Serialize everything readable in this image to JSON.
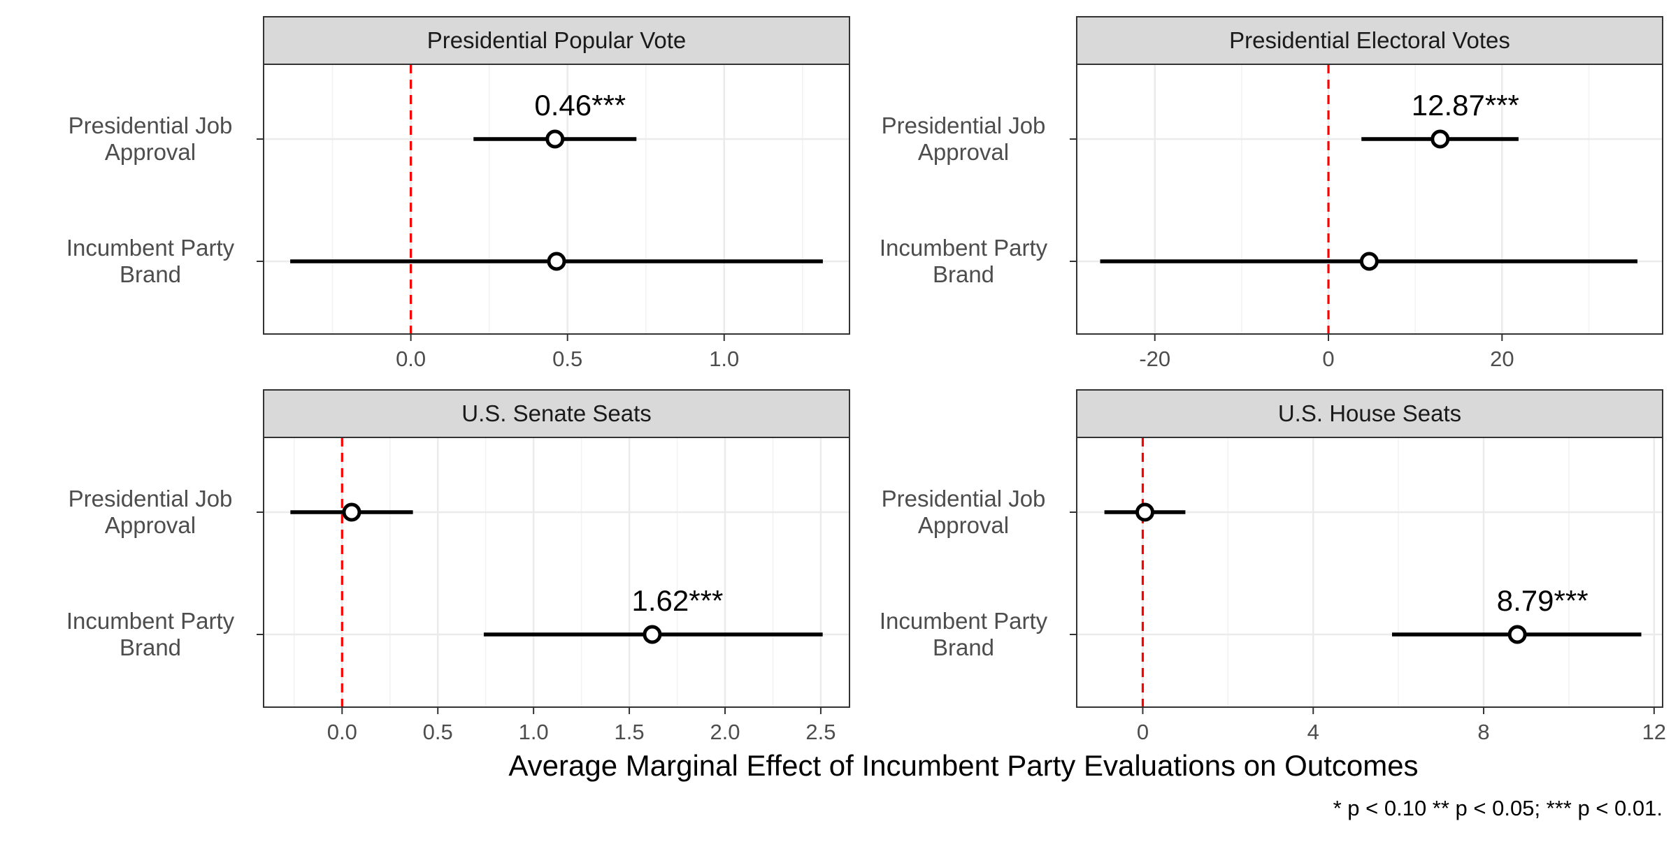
{
  "chart_data": {
    "type": "forest",
    "xlabel": "Average Marginal Effect of Incumbent Party Evaluations on Outcomes",
    "caption": "* p < 0.10 ** p < 0.05; *** p < 0.01.",
    "reference_line": 0,
    "categories": [
      "Presidential Job Approval",
      "Incumbent Party Brand"
    ],
    "panels": [
      {
        "title": "Presidential Popular Vote",
        "xlim": [
          -0.47,
          1.4
        ],
        "xticks": [
          0.0,
          0.5,
          1.0
        ],
        "tick_labels": [
          "0.0",
          "0.5",
          "1.0"
        ],
        "minor_ticks": [
          -0.25,
          0.25,
          0.75,
          1.25
        ],
        "estimates": [
          {
            "label": "Presidential Job Approval",
            "value": 0.46,
            "low": 0.2,
            "high": 0.72,
            "annotation": "0.46***"
          },
          {
            "label": "Incumbent Party Brand",
            "value": 0.465,
            "low": -0.385,
            "high": 1.315,
            "annotation": ""
          }
        ]
      },
      {
        "title": "Presidential Electoral Votes",
        "xlim": [
          -29.0,
          38.5
        ],
        "xticks": [
          -20,
          0,
          20
        ],
        "tick_labels": [
          "-20",
          "0",
          "20"
        ],
        "minor_ticks": [
          -10,
          10,
          30
        ],
        "estimates": [
          {
            "label": "Presidential Job Approval",
            "value": 12.87,
            "low": 3.8,
            "high": 21.9,
            "annotation": "12.87***"
          },
          {
            "label": "Incumbent Party Brand",
            "value": 4.7,
            "low": -26.3,
            "high": 35.6,
            "annotation": ""
          }
        ]
      },
      {
        "title": "U.S. Senate Seats",
        "xlim": [
          -0.41,
          2.65
        ],
        "xticks": [
          0.0,
          0.5,
          1.0,
          1.5,
          2.0,
          2.5
        ],
        "tick_labels": [
          "0.0",
          "0.5",
          "1.0",
          "1.5",
          "2.0",
          "2.5"
        ],
        "minor_ticks": [
          -0.25,
          0.25,
          0.75,
          1.25,
          1.75,
          2.25
        ],
        "estimates": [
          {
            "label": "Presidential Job Approval",
            "value": 0.05,
            "low": -0.27,
            "high": 0.37,
            "annotation": ""
          },
          {
            "label": "Incumbent Party Brand",
            "value": 1.62,
            "low": 0.74,
            "high": 2.51,
            "annotation": "1.62***"
          }
        ]
      },
      {
        "title": "U.S. House Seats",
        "xlim": [
          -1.55,
          12.2
        ],
        "xticks": [
          0,
          4,
          8,
          12
        ],
        "tick_labels": [
          "0",
          "4",
          "8",
          "12"
        ],
        "minor_ticks": [
          2,
          6,
          10
        ],
        "estimates": [
          {
            "label": "Presidential Job Approval",
            "value": 0.05,
            "low": -0.9,
            "high": 1.0,
            "annotation": ""
          },
          {
            "label": "Incumbent Party Brand",
            "value": 8.79,
            "low": 5.85,
            "high": 11.7,
            "annotation": "8.79***"
          }
        ]
      }
    ]
  }
}
